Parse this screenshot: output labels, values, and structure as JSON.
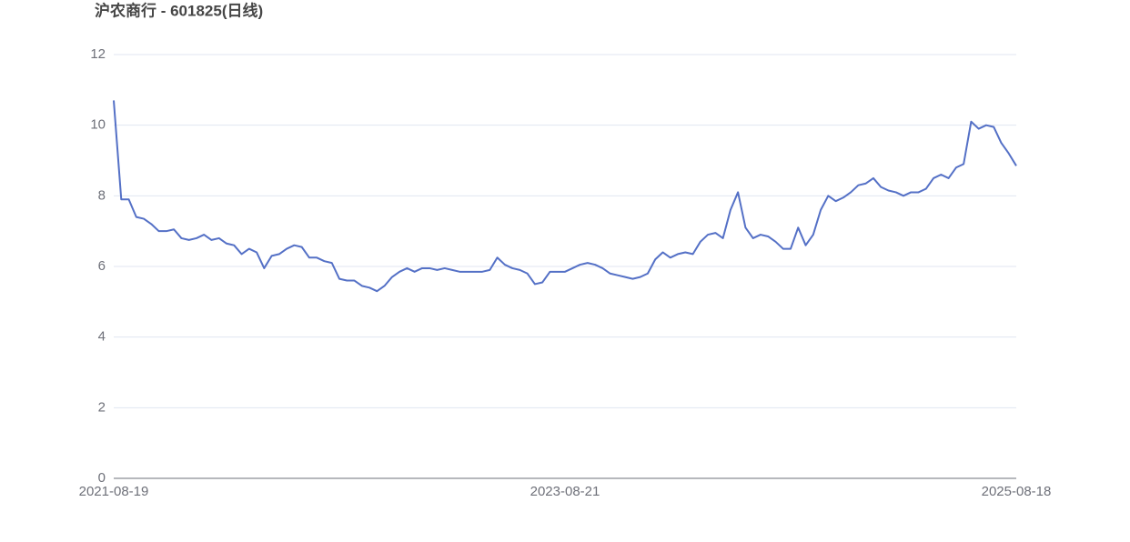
{
  "chart_data": {
    "type": "line",
    "title": "沪农商行 - 601825(日线)",
    "categories": [
      "2021-08-19",
      null,
      null,
      null,
      null,
      null,
      null,
      null,
      null,
      null,
      null,
      null,
      null,
      null,
      null,
      null,
      null,
      null,
      null,
      null,
      null,
      null,
      null,
      null,
      null,
      null,
      null,
      null,
      null,
      null,
      null,
      null,
      null,
      null,
      null,
      null,
      null,
      null,
      null,
      null,
      null,
      null,
      null,
      null,
      null,
      null,
      null,
      null,
      null,
      null,
      null,
      null,
      null,
      null,
      null,
      null,
      null,
      null,
      null,
      null,
      "2023-08-21",
      null,
      null,
      null,
      null,
      null,
      null,
      null,
      null,
      null,
      null,
      null,
      null,
      null,
      null,
      null,
      null,
      null,
      null,
      null,
      null,
      null,
      null,
      null,
      null,
      null,
      null,
      null,
      null,
      null,
      null,
      null,
      null,
      null,
      null,
      null,
      null,
      null,
      null,
      null,
      null,
      null,
      null,
      null,
      null,
      null,
      null,
      null,
      null,
      null,
      null,
      null,
      null,
      null,
      null,
      null,
      null,
      null,
      null,
      null,
      "2025-08-18"
    ],
    "values": [
      10.7,
      7.9,
      7.9,
      7.4,
      7.35,
      7.2,
      7.0,
      7.0,
      7.05,
      6.8,
      6.75,
      6.8,
      6.9,
      6.75,
      6.8,
      6.65,
      6.6,
      6.35,
      6.5,
      6.4,
      5.95,
      6.3,
      6.35,
      6.5,
      6.6,
      6.55,
      6.25,
      6.25,
      6.15,
      6.1,
      5.65,
      5.6,
      5.6,
      5.45,
      5.4,
      5.3,
      5.45,
      5.7,
      5.85,
      5.95,
      5.85,
      5.95,
      5.95,
      5.9,
      5.95,
      5.9,
      5.85,
      5.85,
      5.85,
      5.85,
      5.9,
      6.25,
      6.05,
      5.95,
      5.9,
      5.8,
      5.5,
      5.55,
      5.85,
      5.85,
      5.85,
      5.95,
      6.05,
      6.1,
      6.05,
      5.95,
      5.8,
      5.75,
      5.7,
      5.65,
      5.7,
      5.8,
      6.2,
      6.4,
      6.25,
      6.35,
      6.4,
      6.35,
      6.7,
      6.9,
      6.95,
      6.8,
      7.6,
      8.1,
      7.1,
      6.8,
      6.9,
      6.85,
      6.7,
      6.5,
      6.5,
      7.1,
      6.6,
      6.9,
      7.6,
      8.0,
      7.85,
      7.95,
      8.1,
      8.3,
      8.35,
      8.5,
      8.25,
      8.15,
      8.1,
      8.0,
      8.1,
      8.1,
      8.2,
      8.5,
      8.6,
      8.5,
      8.8,
      8.9,
      10.1,
      9.9,
      10.0,
      9.95,
      9.5,
      9.2,
      8.85
    ],
    "color": "#5470c6",
    "ylim": [
      0,
      12
    ],
    "yticks": [
      0,
      2,
      4,
      6,
      8,
      10,
      12
    ],
    "grid": true
  }
}
